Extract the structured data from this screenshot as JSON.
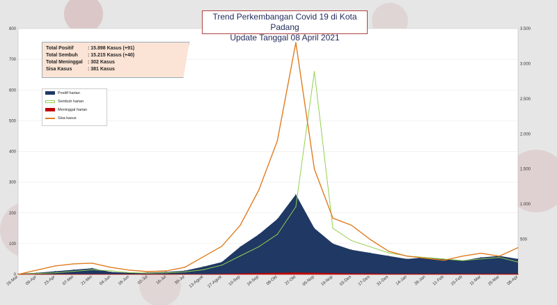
{
  "title": {
    "line1": "Trend Perkembangan Covid 19 di Kota Padang",
    "line2": "Update Tanggal  08 April 2021"
  },
  "stats": [
    {
      "label": "Total Positif",
      "value": ": 15.898 Kasus (+91)"
    },
    {
      "label": "Total Sembuh",
      "value": ": 15.215 Kasus (+40)"
    },
    {
      "label": "Total Meninggal",
      "value": ":      302 Kasus"
    },
    {
      "label": "Sisa Kasus",
      "value": ":      381 Kasus"
    }
  ],
  "legend": [
    {
      "label": "Positif harian",
      "color": "#1f3864",
      "kind": "area"
    },
    {
      "label": "Sembuh harian",
      "color": "#92d050",
      "kind": "outline"
    },
    {
      "label": "Meninggal harian",
      "color": "#c00000",
      "kind": "area"
    },
    {
      "label": "Sisa kasus",
      "color": "#e07b1f",
      "kind": "line"
    }
  ],
  "colors": {
    "positif": "#1f3864",
    "sembuh": "#92d050",
    "meninggal": "#c00000",
    "sisa": "#e07b1f"
  },
  "chart_data": {
    "type": "area",
    "x": [
      "26-Mar",
      "09-Apr",
      "23-Apr",
      "07-Mei",
      "21-Mei",
      "04-Jun",
      "18-Jun",
      "02-Jul",
      "16-Jul",
      "30-Jul",
      "13-Agust",
      "27-Agust",
      "10-Sep",
      "24-Sep",
      "08-Okt",
      "22-Okt",
      "05-Nop",
      "19-Nop",
      "03-Des",
      "17-Des",
      "31-Des",
      "14-Jan",
      "28-Jan",
      "11-Feb",
      "25-Feb",
      "11-Mar",
      "25-Mar",
      "08-Apr"
    ],
    "y_left_ticks": [
      "0",
      "100",
      "200",
      "300",
      "400",
      "500",
      "600",
      "700",
      "800"
    ],
    "y_right_ticks": [
      "",
      "500",
      "1.000",
      "1.500",
      "2.000",
      "2.500",
      "3.000",
      "3.500"
    ],
    "ylim_left": [
      0,
      800
    ],
    "ylim_right": [
      0,
      3500
    ],
    "series": [
      {
        "name": "Positif harian",
        "axis": "left",
        "values": [
          2,
          5,
          10,
          15,
          20,
          8,
          5,
          6,
          8,
          12,
          25,
          40,
          90,
          130,
          180,
          260,
          150,
          100,
          80,
          70,
          60,
          50,
          55,
          50,
          45,
          55,
          60,
          50
        ]
      },
      {
        "name": "Sembuh harian",
        "axis": "left",
        "values": [
          0,
          3,
          5,
          10,
          15,
          12,
          6,
          4,
          5,
          8,
          15,
          30,
          60,
          90,
          130,
          220,
          660,
          150,
          110,
          90,
          70,
          60,
          55,
          50,
          45,
          50,
          55,
          40
        ]
      },
      {
        "name": "Meninggal harian",
        "axis": "left",
        "values": [
          0,
          0,
          0,
          0,
          0,
          0,
          0,
          0,
          0,
          0,
          0,
          1,
          2,
          3,
          4,
          5,
          4,
          3,
          2,
          2,
          1,
          1,
          1,
          1,
          1,
          1,
          1,
          1
        ]
      },
      {
        "name": "Sisa kasus",
        "axis": "right",
        "values": [
          0,
          60,
          120,
          150,
          160,
          100,
          60,
          40,
          50,
          100,
          250,
          400,
          700,
          1200,
          1900,
          3300,
          1500,
          800,
          700,
          500,
          330,
          260,
          230,
          200,
          260,
          300,
          260,
          381
        ]
      }
    ]
  }
}
